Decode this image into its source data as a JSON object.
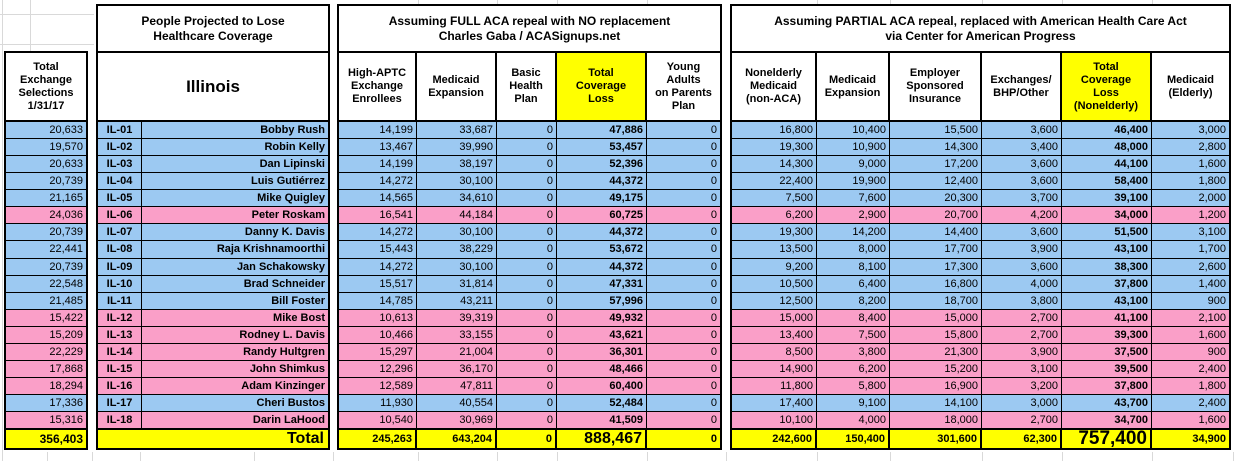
{
  "colors": {
    "dem": "#9CC9F2",
    "rep": "#FA9FC8",
    "total": "#FFFF00"
  },
  "left": {
    "header": "Total\nExchange\nSelections\n1/31/17",
    "total": "356,403"
  },
  "district": {
    "title": "People Projected to Lose\nHealthcare Coverage",
    "state": "Illinois",
    "total_label": "Total"
  },
  "full": {
    "title": "Assuming FULL ACA repeal with NO replacement\nCharles Gaba / ACASignups.net",
    "headers": [
      {
        "label": "High-APTC\nExchange\nEnrollees",
        "highlight": false
      },
      {
        "label": "Medicaid\nExpansion",
        "highlight": false
      },
      {
        "label": "Basic\nHealth\nPlan",
        "highlight": false
      },
      {
        "label": "Total\nCoverage\nLoss",
        "highlight": true
      },
      {
        "label": "Young\nAdults\non Parents\nPlan",
        "highlight": false
      }
    ],
    "totals": [
      "245,263",
      "643,204",
      "0",
      "888,467",
      "0"
    ]
  },
  "partial": {
    "title": "Assuming PARTIAL ACA repeal, replaced with American Health Care Act\nvia Center for American Progress",
    "headers": [
      {
        "label": "Nonelderly\nMedicaid\n(non-ACA)",
        "highlight": false
      },
      {
        "label": "Medicaid\nExpansion",
        "highlight": false
      },
      {
        "label": "Employer\nSponsored\nInsurance",
        "highlight": false
      },
      {
        "label": "Exchanges/\nBHP/Other",
        "highlight": false
      },
      {
        "label": "Total\nCoverage\nLoss\n(Nonelderly)",
        "highlight": true
      },
      {
        "label": "Medicaid\n(Elderly)",
        "highlight": false
      }
    ],
    "totals": [
      "242,600",
      "150,400",
      "301,600",
      "62,300",
      "757,400",
      "34,900"
    ]
  },
  "rows": [
    {
      "code": "IL-01",
      "name": "Bobby Rush",
      "party": "D",
      "exchange": "20,633",
      "full": [
        "14,199",
        "33,687",
        "0",
        "47,886",
        "0"
      ],
      "partial": [
        "16,800",
        "10,400",
        "15,500",
        "3,600",
        "46,400",
        "3,000"
      ]
    },
    {
      "code": "IL-02",
      "name": "Robin Kelly",
      "party": "D",
      "exchange": "19,570",
      "full": [
        "13,467",
        "39,990",
        "0",
        "53,457",
        "0"
      ],
      "partial": [
        "19,300",
        "10,900",
        "14,300",
        "3,400",
        "48,000",
        "2,800"
      ]
    },
    {
      "code": "IL-03",
      "name": "Dan Lipinski",
      "party": "D",
      "exchange": "20,633",
      "full": [
        "14,199",
        "38,197",
        "0",
        "52,396",
        "0"
      ],
      "partial": [
        "14,300",
        "9,000",
        "17,200",
        "3,600",
        "44,100",
        "1,600"
      ]
    },
    {
      "code": "IL-04",
      "name": "Luis Gutiérrez",
      "party": "D",
      "exchange": "20,739",
      "full": [
        "14,272",
        "30,100",
        "0",
        "44,372",
        "0"
      ],
      "partial": [
        "22,400",
        "19,900",
        "12,400",
        "3,600",
        "58,400",
        "1,800"
      ]
    },
    {
      "code": "IL-05",
      "name": "Mike Quigley",
      "party": "D",
      "exchange": "21,165",
      "full": [
        "14,565",
        "34,610",
        "0",
        "49,175",
        "0"
      ],
      "partial": [
        "7,500",
        "7,600",
        "20,300",
        "3,700",
        "39,100",
        "2,000"
      ]
    },
    {
      "code": "IL-06",
      "name": "Peter Roskam",
      "party": "R",
      "exchange": "24,036",
      "full": [
        "16,541",
        "44,184",
        "0",
        "60,725",
        "0"
      ],
      "partial": [
        "6,200",
        "2,900",
        "20,700",
        "4,200",
        "34,000",
        "1,200"
      ]
    },
    {
      "code": "IL-07",
      "name": "Danny K. Davis",
      "party": "D",
      "exchange": "20,739",
      "full": [
        "14,272",
        "30,100",
        "0",
        "44,372",
        "0"
      ],
      "partial": [
        "19,300",
        "14,200",
        "14,400",
        "3,600",
        "51,500",
        "3,100"
      ]
    },
    {
      "code": "IL-08",
      "name": "Raja Krishnamoorthi",
      "party": "D",
      "exchange": "22,441",
      "full": [
        "15,443",
        "38,229",
        "0",
        "53,672",
        "0"
      ],
      "partial": [
        "13,500",
        "8,000",
        "17,700",
        "3,900",
        "43,100",
        "1,700"
      ]
    },
    {
      "code": "IL-09",
      "name": "Jan Schakowsky",
      "party": "D",
      "exchange": "20,739",
      "full": [
        "14,272",
        "30,100",
        "0",
        "44,372",
        "0"
      ],
      "partial": [
        "9,200",
        "8,100",
        "17,300",
        "3,600",
        "38,300",
        "2,600"
      ]
    },
    {
      "code": "IL-10",
      "name": "Brad Schneider",
      "party": "D",
      "exchange": "22,548",
      "full": [
        "15,517",
        "31,814",
        "0",
        "47,331",
        "0"
      ],
      "partial": [
        "10,500",
        "6,400",
        "16,800",
        "4,000",
        "37,800",
        "1,400"
      ]
    },
    {
      "code": "IL-11",
      "name": "Bill Foster",
      "party": "D",
      "exchange": "21,485",
      "full": [
        "14,785",
        "43,211",
        "0",
        "57,996",
        "0"
      ],
      "partial": [
        "12,500",
        "8,200",
        "18,700",
        "3,800",
        "43,100",
        "900"
      ]
    },
    {
      "code": "IL-12",
      "name": "Mike Bost",
      "party": "R",
      "exchange": "15,422",
      "full": [
        "10,613",
        "39,319",
        "0",
        "49,932",
        "0"
      ],
      "partial": [
        "15,000",
        "8,400",
        "15,000",
        "2,700",
        "41,100",
        "2,100"
      ]
    },
    {
      "code": "IL-13",
      "name": "Rodney L. Davis",
      "party": "R",
      "exchange": "15,209",
      "full": [
        "10,466",
        "33,155",
        "0",
        "43,621",
        "0"
      ],
      "partial": [
        "13,400",
        "7,500",
        "15,800",
        "2,700",
        "39,300",
        "1,600"
      ]
    },
    {
      "code": "IL-14",
      "name": "Randy Hultgren",
      "party": "R",
      "exchange": "22,229",
      "full": [
        "15,297",
        "21,004",
        "0",
        "36,301",
        "0"
      ],
      "partial": [
        "8,500",
        "3,800",
        "21,300",
        "3,900",
        "37,500",
        "900"
      ]
    },
    {
      "code": "IL-15",
      "name": "John Shimkus",
      "party": "R",
      "exchange": "17,868",
      "full": [
        "12,296",
        "36,170",
        "0",
        "48,466",
        "0"
      ],
      "partial": [
        "14,900",
        "6,200",
        "15,200",
        "3,100",
        "39,500",
        "2,400"
      ]
    },
    {
      "code": "IL-16",
      "name": "Adam Kinzinger",
      "party": "R",
      "exchange": "18,294",
      "full": [
        "12,589",
        "47,811",
        "0",
        "60,400",
        "0"
      ],
      "partial": [
        "11,800",
        "5,800",
        "16,900",
        "3,200",
        "37,800",
        "1,800"
      ]
    },
    {
      "code": "IL-17",
      "name": "Cheri Bustos",
      "party": "D",
      "exchange": "17,336",
      "full": [
        "11,930",
        "40,554",
        "0",
        "52,484",
        "0"
      ],
      "partial": [
        "17,400",
        "9,100",
        "14,100",
        "3,000",
        "43,700",
        "2,400"
      ]
    },
    {
      "code": "IL-18",
      "name": "Darin LaHood",
      "party": "R",
      "exchange": "15,316",
      "full": [
        "10,540",
        "30,969",
        "0",
        "41,509",
        "0"
      ],
      "partial": [
        "10,100",
        "4,000",
        "18,000",
        "2,700",
        "34,700",
        "1,600"
      ]
    }
  ]
}
